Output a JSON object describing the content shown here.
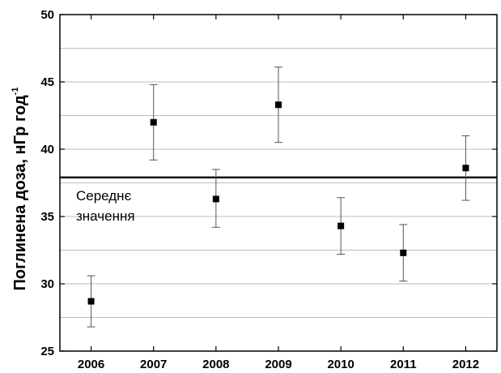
{
  "chart_data": {
    "type": "scatter",
    "title": "",
    "xlabel": "",
    "ylabel": "Поглинена доза, нГр год",
    "ylabel_superscript": "-1",
    "xlim": [
      2005.5,
      2012.5
    ],
    "ylim": [
      25,
      50
    ],
    "y_ticks": [
      25,
      30,
      35,
      40,
      45,
      50
    ],
    "grid": {
      "horizontal": true,
      "vertical": false,
      "minor_y_step": 2.5
    },
    "series": [
      {
        "x": [
          2006,
          2007,
          2008,
          2009,
          2010,
          2011,
          2012
        ],
        "y": [
          28.7,
          42.0,
          36.3,
          43.3,
          34.3,
          32.3,
          38.6
        ],
        "y_err_upper": [
          30.6,
          44.8,
          38.5,
          46.1,
          36.4,
          34.4,
          41.0
        ],
        "y_err_lower": [
          26.8,
          39.2,
          34.2,
          40.5,
          32.2,
          30.2,
          36.2
        ]
      }
    ],
    "reference_line": {
      "y": 37.9,
      "label_lines": [
        "Середнє",
        "значення"
      ]
    }
  }
}
